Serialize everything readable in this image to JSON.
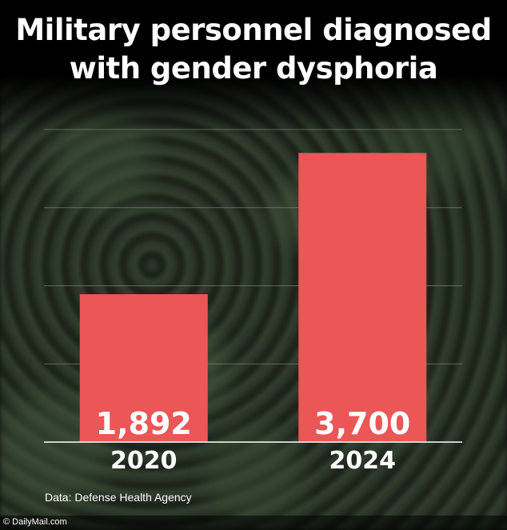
{
  "header": {
    "title_line1": "Military personnel diagnosed",
    "title_line2": "with gender dysphoria"
  },
  "source": "Data: Defense Health Agency",
  "logo": "© DailyMail.com",
  "colors": {
    "bar": "#EB5657",
    "gridline": "#8a8f88",
    "axis": "#ffffff",
    "text": "#ffffff"
  },
  "chart_data": {
    "type": "bar",
    "title": "Military personnel diagnosed with gender dysphoria",
    "categories": [
      "2020",
      "2024"
    ],
    "values": [
      1892,
      3700
    ],
    "value_labels": [
      "1,892",
      "3,700"
    ],
    "ylim": [
      0,
      4000
    ],
    "grid": true,
    "gridlines": [
      1000,
      2000,
      3000,
      4000
    ],
    "legend": "none"
  }
}
